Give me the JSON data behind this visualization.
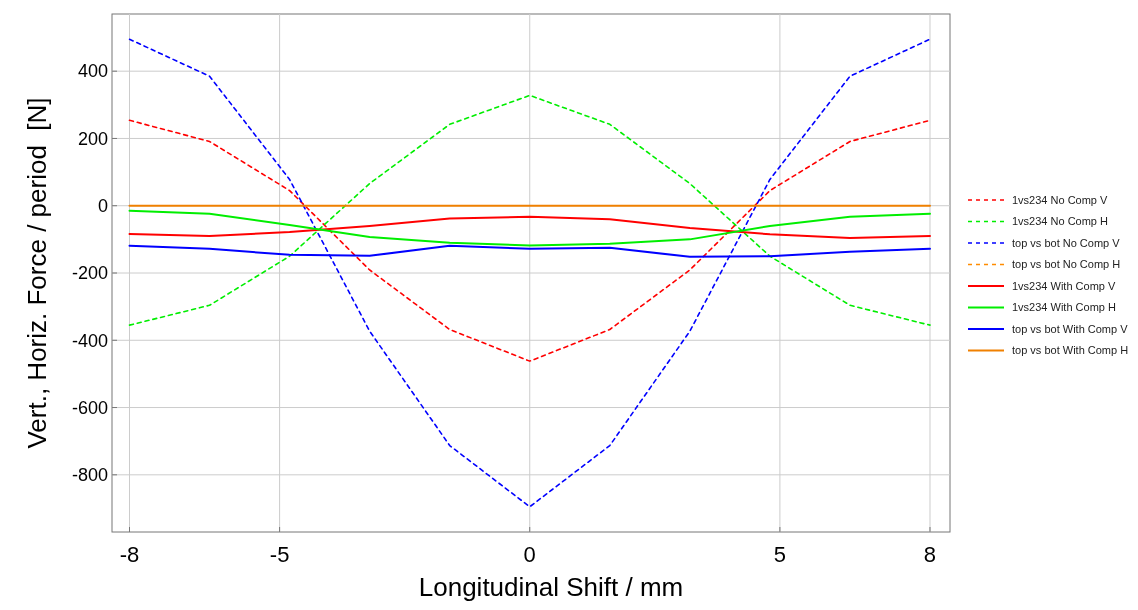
{
  "chart_data": {
    "type": "line",
    "xlabel": "Longitudinal Shift / mm",
    "ylabel": "Vert., Horiz. Force / period  [N]",
    "x": [
      -8,
      -6.4,
      -4.8,
      -3.2,
      -1.6,
      0,
      1.6,
      3.2,
      4.8,
      6.4,
      8
    ],
    "xlim": [
      -8.35,
      8.4
    ],
    "xticks": [
      -8,
      -5,
      0,
      5,
      8
    ],
    "ylim": [
      -970,
      570
    ],
    "yticks": [
      -800,
      -600,
      -400,
      -200,
      0,
      200,
      400
    ],
    "grid": true,
    "legend": "right",
    "marker": "none",
    "series": [
      {
        "name": "1vs234 No Comp V",
        "color": "#ff0000",
        "line_style": "dashed",
        "values": [
          254,
          191,
          45,
          -191,
          -368,
          -462,
          -368,
          -191,
          45,
          191,
          254
        ]
      },
      {
        "name": "1vs234 No Comp H",
        "color": "#00ee00",
        "line_style": "dashed",
        "values": [
          -355,
          -296,
          -150,
          66,
          242,
          328,
          242,
          66,
          -150,
          -296,
          -355
        ]
      },
      {
        "name": "top vs bot No Comp V",
        "color": "#0000ff",
        "line_style": "dashed",
        "values": [
          495,
          385,
          78,
          -373,
          -713,
          -895,
          -713,
          -373,
          78,
          385,
          495
        ]
      },
      {
        "name": "top vs bot No Comp H",
        "color": "#ff8c00",
        "line_style": "dashed",
        "values": [
          null,
          null,
          null,
          null,
          null,
          null,
          null,
          null,
          null,
          null,
          null
        ]
      },
      {
        "name": "1vs234 With Comp V",
        "color": "#ff0000",
        "line_style": "solid",
        "values": [
          -84,
          -90,
          -78,
          -60,
          -38,
          -33,
          -40,
          -66,
          -85,
          -96,
          -90
        ]
      },
      {
        "name": "1vs234 With Comp H",
        "color": "#00ee00",
        "line_style": "solid",
        "values": [
          -15,
          -24,
          -57,
          -93,
          -110,
          -118,
          -113,
          -100,
          -60,
          -33,
          -24
        ]
      },
      {
        "name": "top vs bot With Comp V",
        "color": "#0000ff",
        "line_style": "solid",
        "values": [
          -119,
          -128,
          -146,
          -149,
          -119,
          -128,
          -125,
          -152,
          -150,
          -137,
          -128
        ]
      },
      {
        "name": "top vs bot With Comp H",
        "color": "#f08000",
        "line_style": "solid",
        "values": [
          0,
          0,
          0,
          0,
          0,
          0,
          0,
          0,
          0,
          0,
          0
        ]
      }
    ]
  }
}
